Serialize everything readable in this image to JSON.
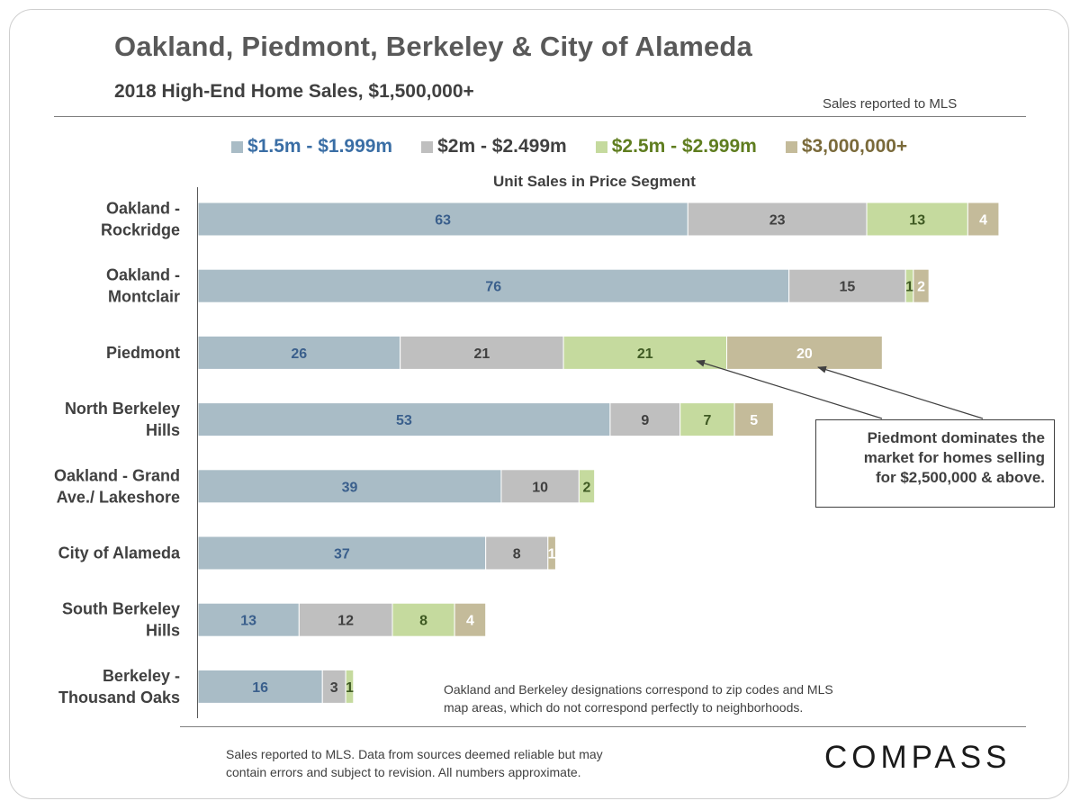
{
  "header": {
    "title": "Oakland, Piedmont, Berkeley & City of Alameda",
    "subtitle": "2018 High-End Home Sales, $1,500,000+",
    "source_note": "Sales reported to MLS"
  },
  "colors": {
    "seg1": "#a9bcc6",
    "seg2": "#bfbfbf",
    "seg3": "#c5da9e",
    "seg4": "#c4bb9a",
    "seg1_text": "#3a5f8c",
    "seg2_text": "#404040",
    "seg3_text": "#3f5a23",
    "seg4_text": "#ffffff",
    "legend1_text": "#3a6ea5",
    "legend2_text": "#404040",
    "legend3_text": "#5f7d1f",
    "legend4_text": "#7a6a3a"
  },
  "chart_data": {
    "type": "bar",
    "orientation": "horizontal",
    "stacked": true,
    "axis_title": "Unit Sales in Price Segment",
    "categories": [
      [
        "Oakland -",
        "Rockridge"
      ],
      [
        "Oakland -",
        "Montclair"
      ],
      [
        "Piedmont"
      ],
      [
        "North Berkeley",
        "Hills"
      ],
      [
        "Oakland - Grand",
        "Ave./ Lakeshore"
      ],
      [
        "City of Alameda"
      ],
      [
        "South Berkeley",
        "Hills"
      ],
      [
        "Berkeley -",
        "Thousand Oaks"
      ]
    ],
    "series": [
      {
        "name": "$1.5m - $1.999m",
        "values": [
          63,
          76,
          26,
          53,
          39,
          37,
          13,
          16
        ]
      },
      {
        "name": "$2m - $2.499m",
        "values": [
          23,
          15,
          21,
          9,
          10,
          8,
          12,
          3
        ]
      },
      {
        "name": "$2.5m - $2.999m",
        "values": [
          13,
          1,
          21,
          7,
          2,
          0,
          8,
          1
        ]
      },
      {
        "name": "$3,000,000+",
        "values": [
          4,
          2,
          20,
          5,
          0,
          1,
          4,
          0
        ]
      }
    ],
    "legend_position": "top",
    "grid": false
  },
  "annotation": {
    "lines": [
      "Piedmont dominates the",
      "market for homes selling",
      "for $2,500,000 & above."
    ]
  },
  "notes": {
    "zip_note": [
      "Oakland and Berkeley designations correspond to zip codes and MLS",
      "map areas, which do not correspond perfectly to neighborhoods."
    ],
    "footer": [
      "Sales reported to MLS. Data from  sources  deemed reliable but may",
      "contain errors and subject to revision. All numbers approximate."
    ]
  },
  "brand": {
    "logo_text": "COMPASS"
  }
}
